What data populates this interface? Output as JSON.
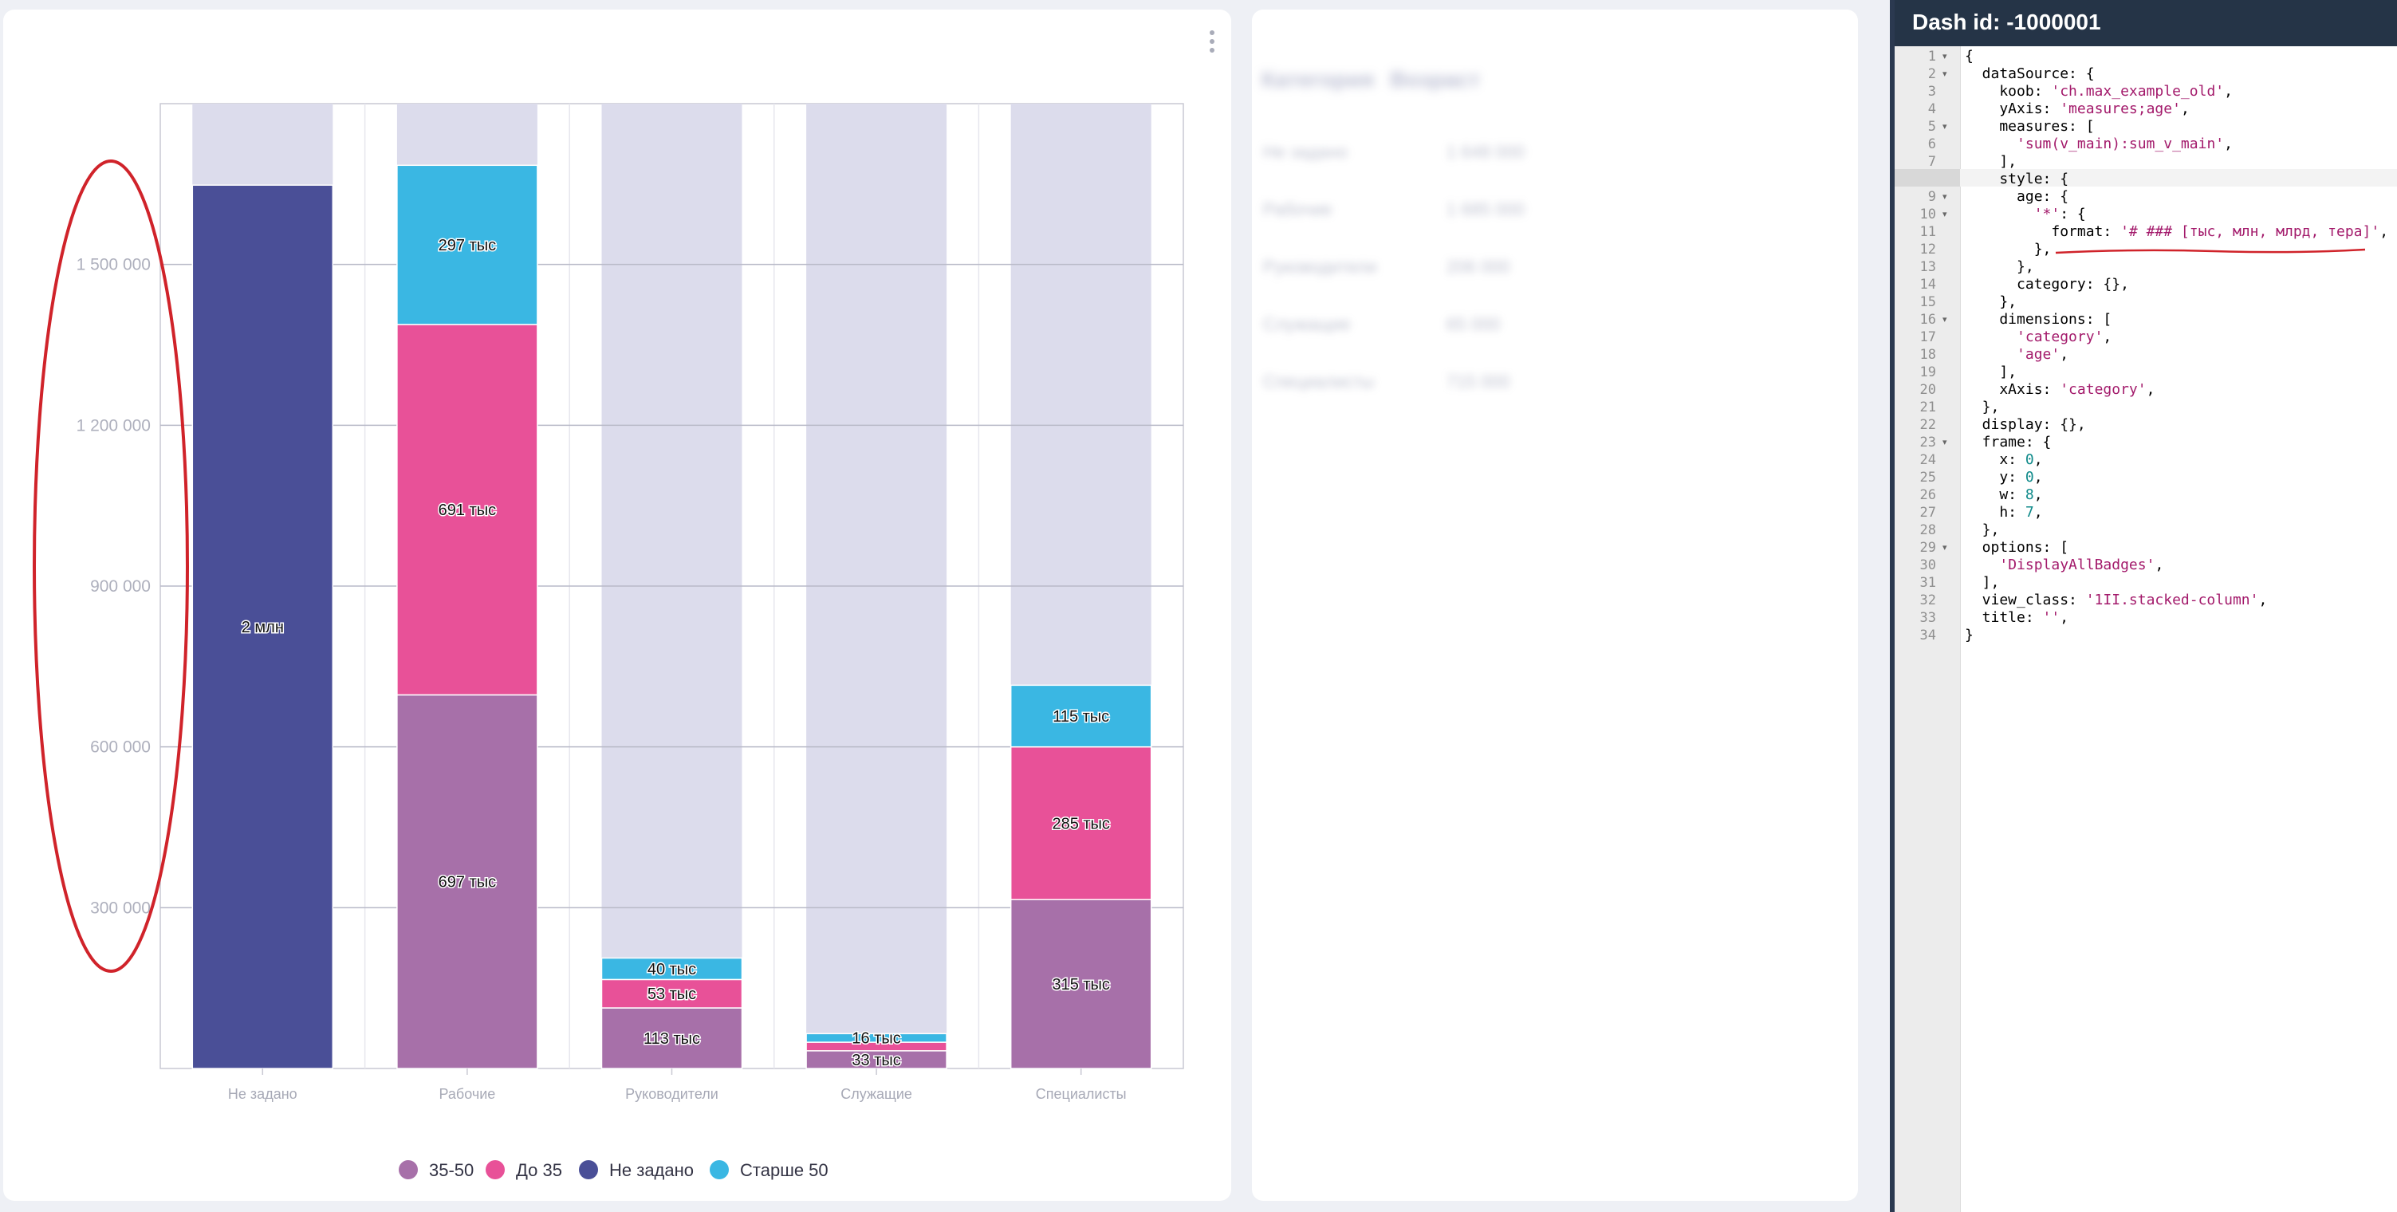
{
  "chart_card": {
    "menu_icon": "kebab-vertical-icon"
  },
  "chart_data": {
    "type": "bar",
    "stacked": true,
    "categories": [
      "Не задано",
      "Рабочие",
      "Руководители",
      "Служащие",
      "Специалисты"
    ],
    "series": [
      {
        "name": "35-50",
        "color": "#a770a9",
        "values": [
          0,
          697000,
          113000,
          33000,
          315000
        ],
        "labels": [
          "",
          "697 тыс",
          "113 тыс",
          "33 тыс",
          "315 тыс"
        ]
      },
      {
        "name": "До 35",
        "color": "#e85198",
        "values": [
          0,
          691000,
          53000,
          16000,
          285000
        ],
        "labels": [
          "",
          "691 тыс",
          "53 тыс",
          "",
          "285 тыс"
        ]
      },
      {
        "name": "Не задано",
        "color": "#4a4f97",
        "values": [
          1648000,
          0,
          0,
          0,
          0
        ],
        "labels": [
          "2 млн",
          "",
          "",
          "",
          ""
        ]
      },
      {
        "name": "Старше 50",
        "color": "#3ab7e3",
        "values": [
          0,
          297000,
          40000,
          16000,
          115000
        ],
        "labels": [
          "",
          "297 тыс",
          "40 тыс",
          "16 тыс",
          "115 тыс"
        ]
      }
    ],
    "background_color": "#dcdcec",
    "ylim": [
      0,
      1800000
    ],
    "yticks": [
      300000,
      600000,
      900000,
      1200000,
      1500000
    ],
    "ytick_labels": [
      "300 000",
      "600 000",
      "900 000",
      "1 200 000",
      "1 500 000"
    ],
    "grid": true,
    "legend_placement": "bottom-center",
    "annotation": {
      "shape": "ellipse",
      "color": "#d0232a",
      "around": "y-axis"
    }
  },
  "side_card": {
    "head": [
      "Категория",
      "Возраст"
    ],
    "rows": [
      [
        "Не задано",
        "1 648 000"
      ],
      [
        "Рабочие",
        "1 685 000"
      ],
      [
        "Руководители",
        "206 000"
      ],
      [
        "Служащие",
        "65 000"
      ],
      [
        "Специалисты",
        "715 000"
      ]
    ]
  },
  "editor": {
    "title": "Dash id: -1000001",
    "lines": [
      [
        [
          "t",
          "{"
        ]
      ],
      [
        [
          "t",
          "  dataSource: {"
        ]
      ],
      [
        [
          "t",
          "    koob: "
        ],
        [
          "s",
          "'ch.max_example_old'"
        ],
        [
          "t",
          ","
        ]
      ],
      [
        [
          "t",
          "    yAxis: "
        ],
        [
          "s",
          "'measures;age'"
        ],
        [
          "t",
          ","
        ]
      ],
      [
        [
          "t",
          "    measures: ["
        ]
      ],
      [
        [
          "t",
          "      "
        ],
        [
          "s",
          "'sum(v_main):sum_v_main'"
        ],
        [
          "t",
          ","
        ]
      ],
      [
        [
          "t",
          "    ],"
        ]
      ],
      [
        [
          "t",
          "    style: {"
        ]
      ],
      [
        [
          "t",
          "      age: {"
        ]
      ],
      [
        [
          "t",
          "        "
        ],
        [
          "s",
          "'*'"
        ],
        [
          "t",
          ": {"
        ]
      ],
      [
        [
          "t",
          "          format: "
        ],
        [
          "s",
          "'# ### [тыс, млн, млрд, тера]'"
        ],
        [
          "t",
          ","
        ]
      ],
      [
        [
          "t",
          "        },"
        ]
      ],
      [
        [
          "t",
          "      },"
        ]
      ],
      [
        [
          "t",
          "      category: {},"
        ]
      ],
      [
        [
          "t",
          "    },"
        ]
      ],
      [
        [
          "t",
          "    dimensions: ["
        ]
      ],
      [
        [
          "t",
          "      "
        ],
        [
          "s",
          "'category'"
        ],
        [
          "t",
          ","
        ]
      ],
      [
        [
          "t",
          "      "
        ],
        [
          "s",
          "'age'"
        ],
        [
          "t",
          ","
        ]
      ],
      [
        [
          "t",
          "    ],"
        ]
      ],
      [
        [
          "t",
          "    xAxis: "
        ],
        [
          "s",
          "'category'"
        ],
        [
          "t",
          ","
        ]
      ],
      [
        [
          "t",
          "  },"
        ]
      ],
      [
        [
          "t",
          "  display: {},"
        ]
      ],
      [
        [
          "t",
          "  frame: {"
        ]
      ],
      [
        [
          "t",
          "    x: "
        ],
        [
          "n",
          "0"
        ],
        [
          "t",
          ","
        ]
      ],
      [
        [
          "t",
          "    y: "
        ],
        [
          "n",
          "0"
        ],
        [
          "t",
          ","
        ]
      ],
      [
        [
          "t",
          "    w: "
        ],
        [
          "n",
          "8"
        ],
        [
          "t",
          ","
        ]
      ],
      [
        [
          "t",
          "    h: "
        ],
        [
          "n",
          "7"
        ],
        [
          "t",
          ","
        ]
      ],
      [
        [
          "t",
          "  },"
        ]
      ],
      [
        [
          "t",
          "  options: ["
        ]
      ],
      [
        [
          "t",
          "    "
        ],
        [
          "s",
          "'DisplayAllBadges'"
        ],
        [
          "t",
          ","
        ]
      ],
      [
        [
          "t",
          "  ],"
        ]
      ],
      [
        [
          "t",
          "  view_class: "
        ],
        [
          "s",
          "'1II.stacked-column'"
        ],
        [
          "t",
          ","
        ]
      ],
      [
        [
          "t",
          "  title: "
        ],
        [
          "s",
          "''"
        ],
        [
          "t",
          ","
        ]
      ],
      [
        [
          "t",
          "}"
        ]
      ]
    ],
    "fold_lines": [
      1,
      2,
      5,
      8,
      9,
      10,
      16,
      23,
      29
    ],
    "active_line": 8,
    "underline_color": "#d0232a"
  }
}
